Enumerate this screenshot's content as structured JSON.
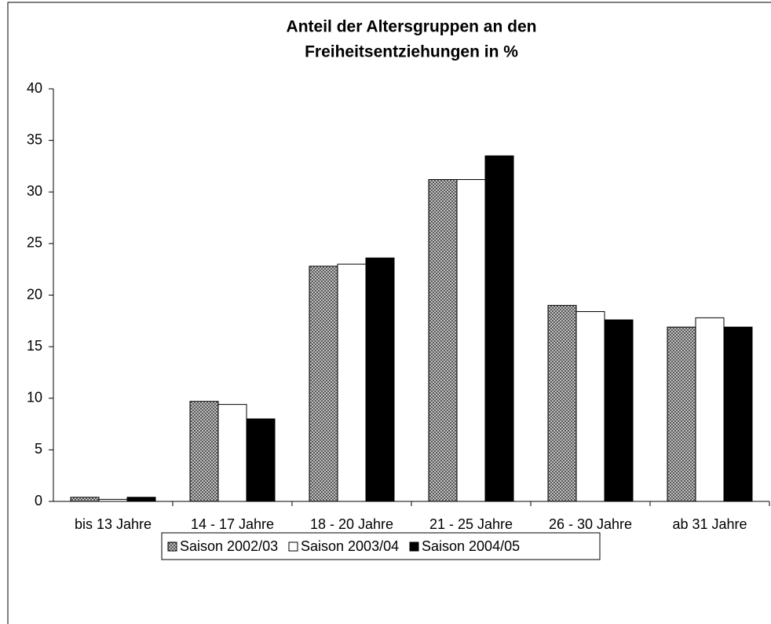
{
  "chart_data": {
    "type": "bar",
    "title": [
      "Anteil der Altersgruppen an den",
      "Freiheitsentziehungen in %"
    ],
    "categories": [
      "bis 13 Jahre",
      "14 - 17 Jahre",
      "18 - 20 Jahre",
      "21 - 25 Jahre",
      "26 - 30 Jahre",
      "ab 31 Jahre"
    ],
    "series": [
      {
        "name": "Saison 2002/03",
        "color": "#a0a0a0",
        "pattern": "crosshatch",
        "values": [
          0.4,
          9.7,
          22.8,
          31.2,
          19.0,
          16.9
        ]
      },
      {
        "name": "Saison 2003/04",
        "color": "#ffffff",
        "values": [
          0.2,
          9.4,
          23.0,
          31.2,
          18.4,
          17.8
        ]
      },
      {
        "name": "Saison 2004/05",
        "color": "#000000",
        "values": [
          0.4,
          8.0,
          23.6,
          33.5,
          17.6,
          16.9
        ]
      }
    ],
    "ylim": [
      0,
      40
    ],
    "yticks": [
      0,
      5,
      10,
      15,
      20,
      25,
      30,
      35,
      40
    ],
    "grid": false,
    "legend": "bottom"
  }
}
